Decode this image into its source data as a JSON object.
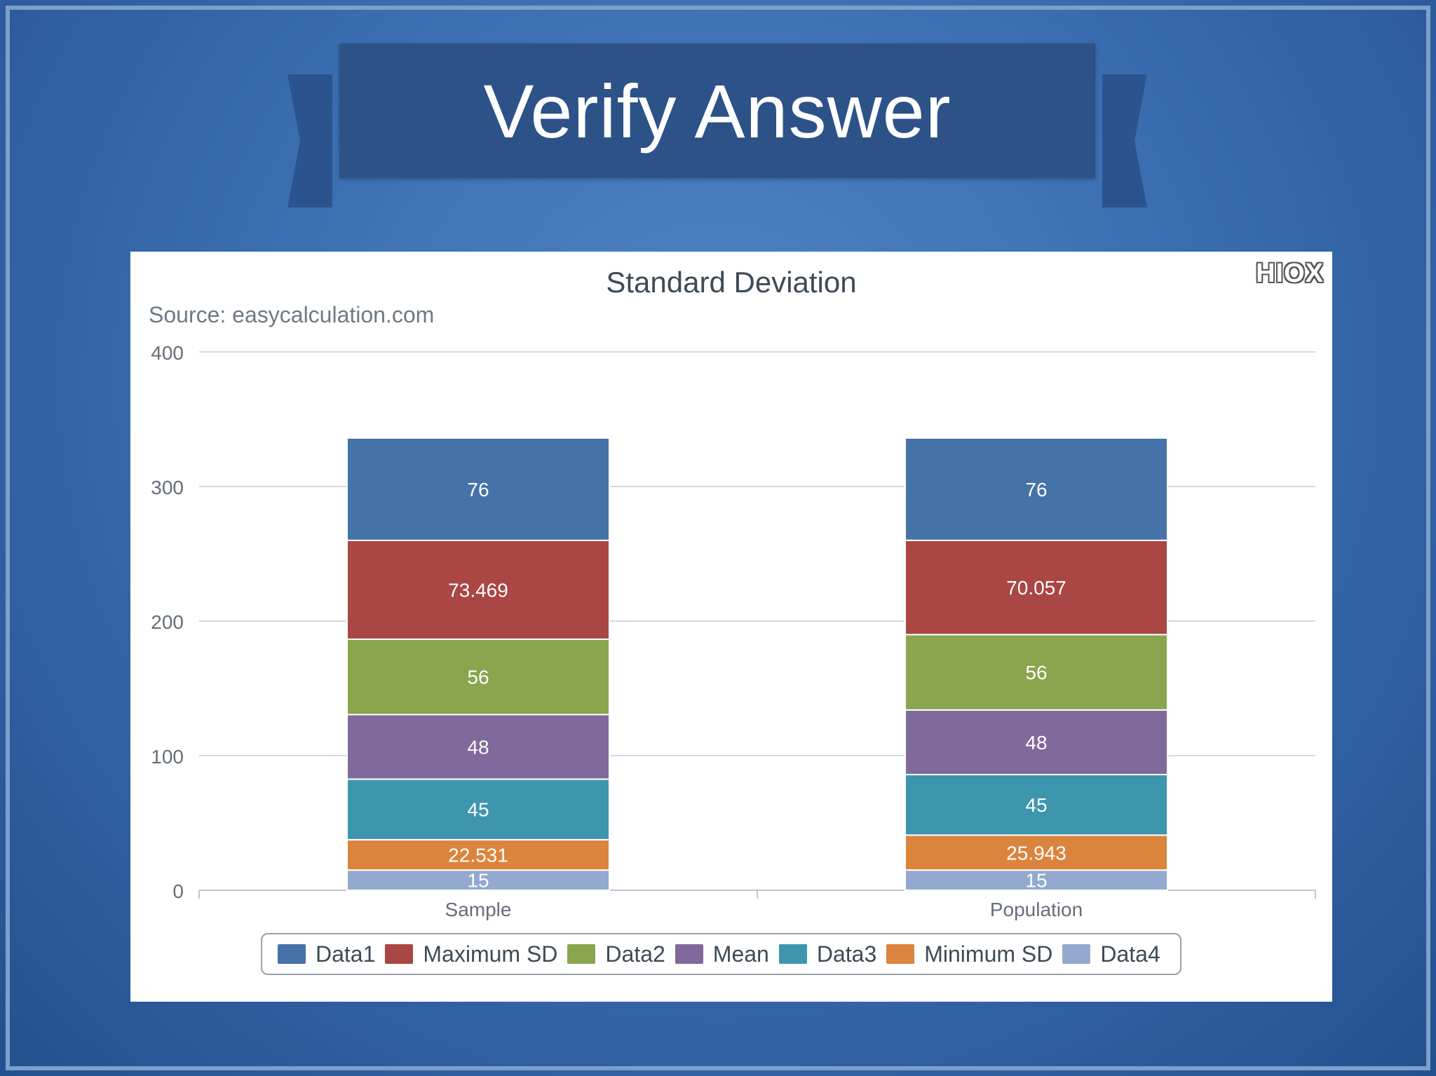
{
  "slide": {
    "title": "Verify Answer"
  },
  "logo": {
    "text": "HIOX"
  },
  "chart_data": {
    "type": "bar",
    "stacked": true,
    "title": "Standard Deviation",
    "subtitle": "Source: easycalculation.com",
    "categories": [
      "Sample",
      "Population"
    ],
    "ylim": [
      0,
      400
    ],
    "yticks": [
      0,
      100,
      200,
      300,
      400
    ],
    "grid": true,
    "legend_position": "bottom",
    "series": [
      {
        "name": "Data4",
        "values": [
          15,
          15
        ],
        "labels": [
          "15",
          "15"
        ],
        "color": "#93a9cf"
      },
      {
        "name": "Minimum SD",
        "values": [
          22.531,
          25.943
        ],
        "labels": [
          "22.531",
          "25.943"
        ],
        "color": "#db843d"
      },
      {
        "name": "Data3",
        "values": [
          45,
          45
        ],
        "labels": [
          "45",
          "45"
        ],
        "color": "#3d96ae"
      },
      {
        "name": "Mean",
        "values": [
          48,
          48
        ],
        "labels": [
          "48",
          "48"
        ],
        "color": "#80699b"
      },
      {
        "name": "Data2",
        "values": [
          56,
          56
        ],
        "labels": [
          "56",
          "56"
        ],
        "color": "#89a54e"
      },
      {
        "name": "Maximum SD",
        "values": [
          73.469,
          70.057
        ],
        "labels": [
          "73.469",
          "70.057"
        ],
        "color": "#aa4643"
      },
      {
        "name": "Data1",
        "values": [
          76,
          76
        ],
        "labels": [
          "76",
          "76"
        ],
        "color": "#4572a7"
      }
    ],
    "legend_order": [
      "Data1",
      "Maximum SD",
      "Data2",
      "Mean",
      "Data3",
      "Minimum SD",
      "Data4"
    ]
  }
}
